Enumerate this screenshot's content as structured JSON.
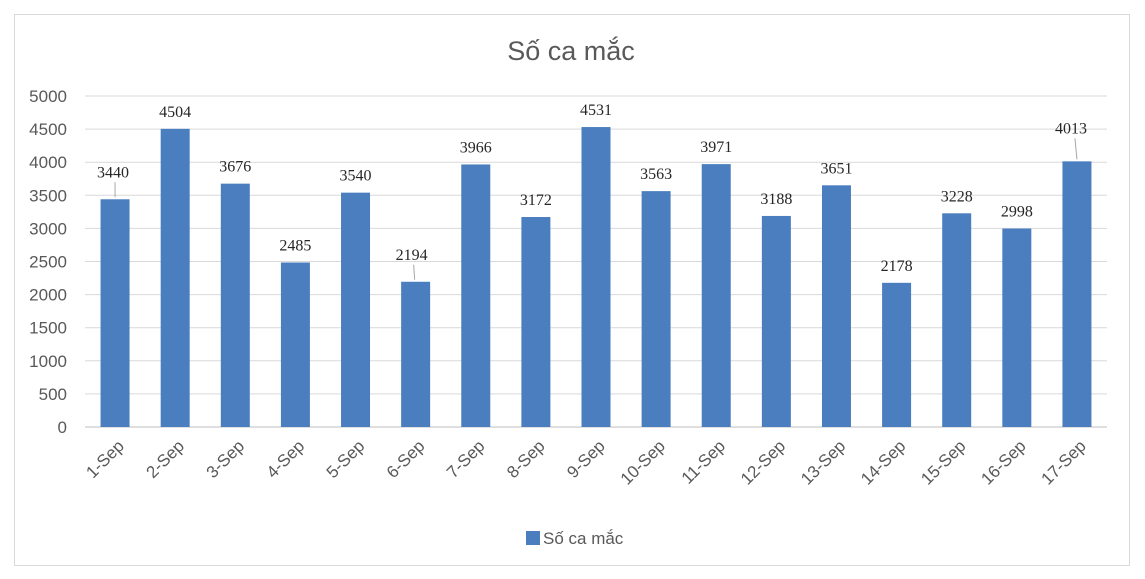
{
  "chart_data": {
    "type": "bar",
    "title": "Số ca mắc",
    "categories": [
      "1-Sep",
      "2-Sep",
      "3-Sep",
      "4-Sep",
      "5-Sep",
      "6-Sep",
      "7-Sep",
      "8-Sep",
      "9-Sep",
      "10-Sep",
      "11-Sep",
      "12-Sep",
      "13-Sep",
      "14-Sep",
      "15-Sep",
      "16-Sep",
      "17-Sep"
    ],
    "series": [
      {
        "name": "Số ca mắc",
        "values": [
          3440,
          4504,
          3676,
          2485,
          3540,
          2194,
          3966,
          3172,
          4531,
          3563,
          3971,
          3188,
          3651,
          2178,
          3228,
          2998,
          4013
        ],
        "color": "#4a7ebf"
      }
    ],
    "ylim": [
      0,
      5000
    ],
    "yticks": [
      0,
      500,
      1000,
      1500,
      2000,
      2500,
      3000,
      3500,
      4000,
      4500,
      5000
    ],
    "grid": true,
    "legend": "bottom",
    "xlabel": "",
    "ylabel": ""
  }
}
